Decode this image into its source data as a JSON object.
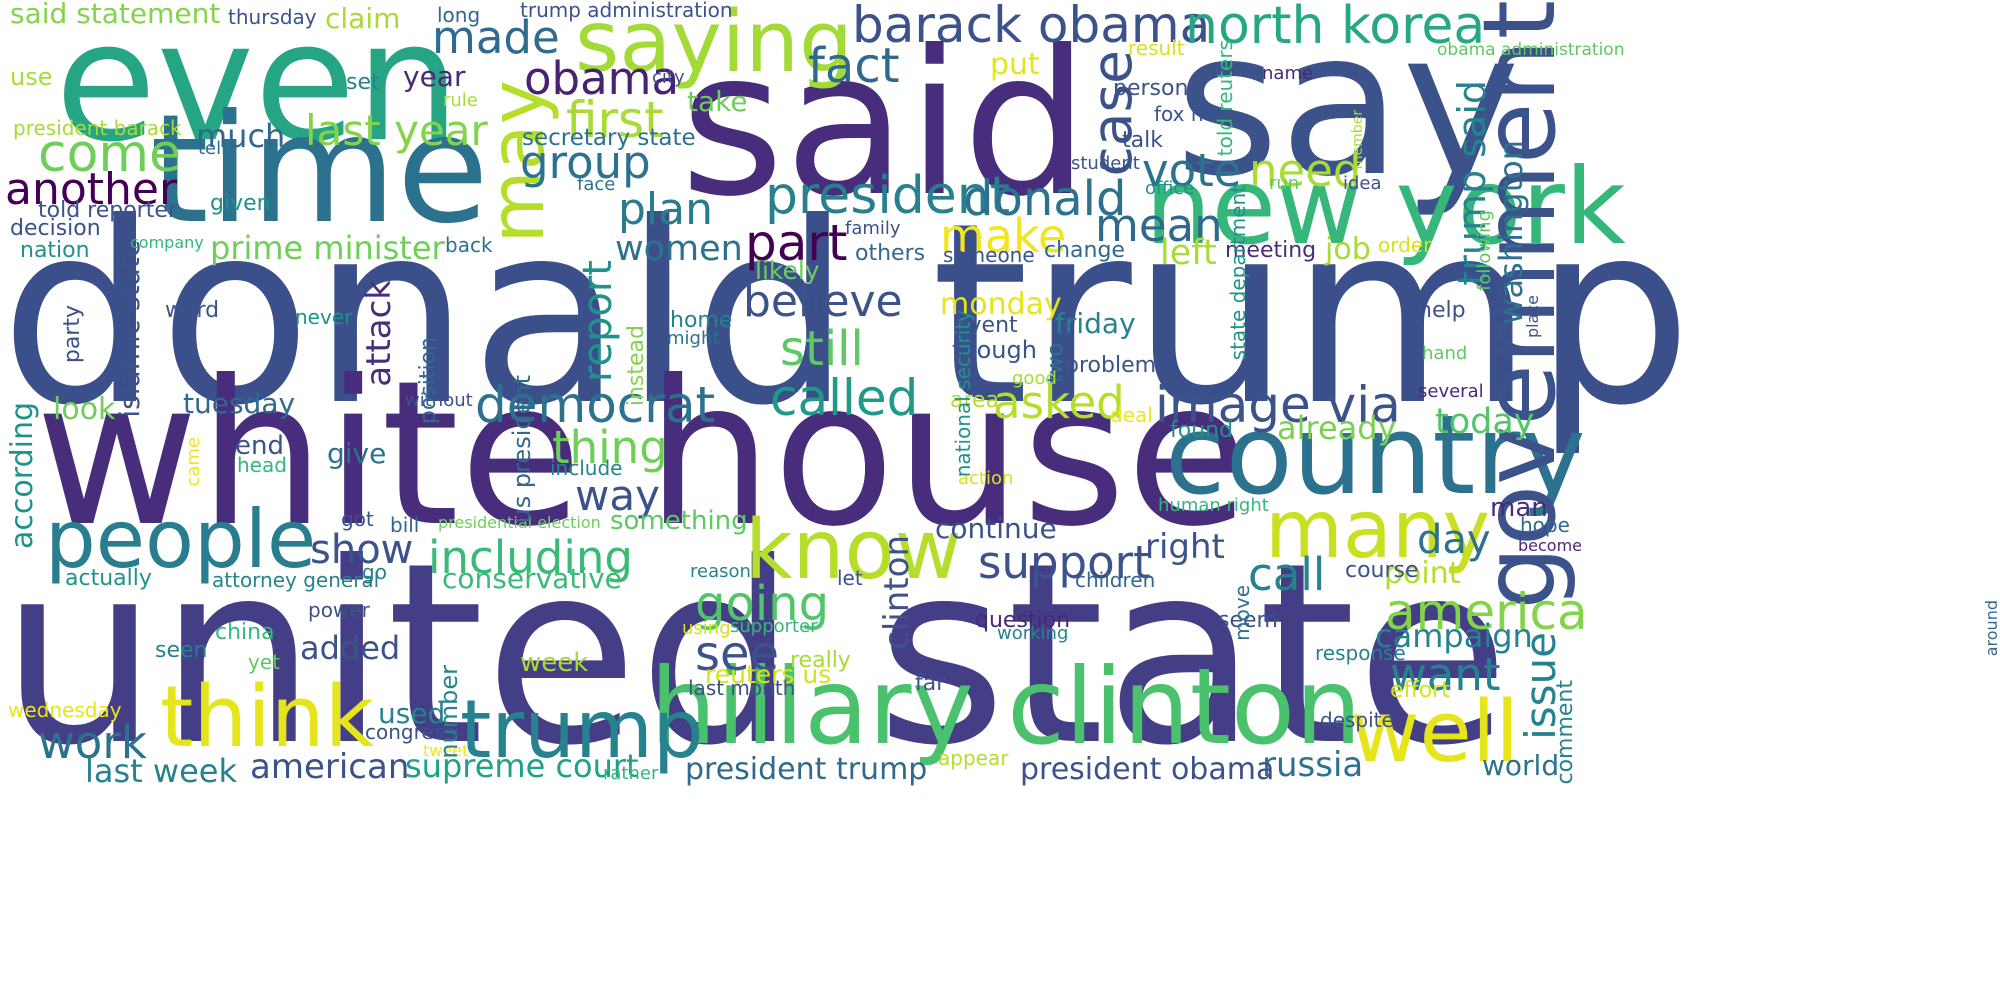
{
  "palette": {
    "navy": "#3b4f8b",
    "indigo": "#472d7b",
    "purple": "#482878",
    "blue": "#31688e",
    "teal": "#26828e",
    "sea": "#1f9e89",
    "green": "#35b779",
    "lime": "#6ece58",
    "yellowgreen": "#b5de2b",
    "yellow": "#e6e41a"
  },
  "words": [
    {
      "text": "donald trump",
      "color": "#3b4f8b"
    },
    {
      "text": "united state",
      "color": "#433e85"
    },
    {
      "text": "white house",
      "color": "#472d7b"
    },
    {
      "text": "said",
      "color": "#472d7b"
    },
    {
      "text": "say",
      "color": "#3b528b"
    },
    {
      "text": "even",
      "color": "#25a584"
    },
    {
      "text": "time",
      "color": "#2c728e"
    },
    {
      "text": "country",
      "color": "#2c728e"
    },
    {
      "text": "new york",
      "color": "#35b779"
    },
    {
      "text": "government",
      "color": "#3b528b"
    },
    {
      "text": "hillary clinton",
      "color": "#4ac16d"
    },
    {
      "text": "people",
      "color": "#287d8e"
    },
    {
      "text": "know",
      "color": "#b5de2b"
    },
    {
      "text": "many",
      "color": "#c8e020"
    },
    {
      "text": "think",
      "color": "#e6e41a"
    },
    {
      "text": "well",
      "color": "#e6e41a"
    },
    {
      "text": "trump",
      "color": "#26828e"
    },
    {
      "text": "saying",
      "color": "#a2da37"
    },
    {
      "text": "barack obama",
      "color": "#3b528b"
    },
    {
      "text": "north korea",
      "color": "#26a784"
    },
    {
      "text": "made",
      "color": "#2f6b8e"
    },
    {
      "text": "may",
      "color": "#b5de2b"
    },
    {
      "text": "obama",
      "color": "#482173"
    },
    {
      "text": "fact",
      "color": "#31688e"
    },
    {
      "text": "case",
      "color": "#3b528b"
    },
    {
      "text": "first",
      "color": "#a8db34"
    },
    {
      "text": "come",
      "color": "#6ece58"
    },
    {
      "text": "last year",
      "color": "#84d44b"
    },
    {
      "text": "much",
      "color": "#31688e"
    },
    {
      "text": "group",
      "color": "#2c728e"
    },
    {
      "text": "president",
      "color": "#27808e"
    },
    {
      "text": "donald",
      "color": "#2c728e"
    },
    {
      "text": "another",
      "color": "#440154"
    },
    {
      "text": "plan",
      "color": "#287c8e"
    },
    {
      "text": "vote",
      "color": "#2c728e"
    },
    {
      "text": "need",
      "color": "#a8db34"
    },
    {
      "text": "trump said",
      "color": "#26828e"
    },
    {
      "text": "part",
      "color": "#440154"
    },
    {
      "text": "make",
      "color": "#f1e51d"
    },
    {
      "text": "mean",
      "color": "#31688e"
    },
    {
      "text": "believe",
      "color": "#3b528b"
    },
    {
      "text": "still",
      "color": "#5ec962"
    },
    {
      "text": "called",
      "color": "#1f9a8a"
    },
    {
      "text": "democrat",
      "color": "#2c728e"
    },
    {
      "text": "report",
      "color": "#20928c"
    },
    {
      "text": "attack",
      "color": "#472d7b"
    },
    {
      "text": "image via",
      "color": "#3b528b"
    },
    {
      "text": "asked",
      "color": "#b5de2b"
    },
    {
      "text": "women",
      "color": "#2c728e"
    },
    {
      "text": "prime minister",
      "color": "#6ece58"
    },
    {
      "text": "islamic state",
      "color": "#3b528b"
    },
    {
      "text": "tuesday",
      "color": "#31688e"
    },
    {
      "text": "look",
      "color": "#6ece58"
    },
    {
      "text": "thing",
      "color": "#6ece58"
    },
    {
      "text": "way",
      "color": "#3b528b"
    },
    {
      "text": "left",
      "color": "#a8db34"
    },
    {
      "text": "washington",
      "color": "#2c728e"
    },
    {
      "text": "already",
      "color": "#7ad151"
    },
    {
      "text": "today",
      "color": "#52c569"
    },
    {
      "text": "issue",
      "color": "#26828e"
    },
    {
      "text": "america",
      "color": "#84d44b"
    },
    {
      "text": "campaign",
      "color": "#26828e"
    },
    {
      "text": "want",
      "color": "#26828e"
    },
    {
      "text": "day",
      "color": "#2c728e"
    },
    {
      "text": "call",
      "color": "#26828e"
    },
    {
      "text": "support",
      "color": "#3b528b"
    },
    {
      "text": "right",
      "color": "#3b528b"
    },
    {
      "text": "including",
      "color": "#3aba76"
    },
    {
      "text": "show",
      "color": "#3b528b"
    },
    {
      "text": "going",
      "color": "#52c569"
    },
    {
      "text": "see",
      "color": "#3b528b"
    },
    {
      "text": "clinton",
      "color": "#3b528b"
    },
    {
      "text": "work",
      "color": "#2c728e"
    },
    {
      "text": "last week",
      "color": "#26828e"
    },
    {
      "text": "american",
      "color": "#3b528b"
    },
    {
      "text": "supreme court",
      "color": "#1fa088"
    },
    {
      "text": "added",
      "color": "#3b528b"
    },
    {
      "text": "conservative",
      "color": "#3aba76"
    },
    {
      "text": "continue",
      "color": "#3b528b"
    },
    {
      "text": "point",
      "color": "#b5de2b"
    },
    {
      "text": "russia",
      "color": "#2c728e"
    },
    {
      "text": "president trump",
      "color": "#31688e"
    },
    {
      "text": "president obama",
      "color": "#3b528b"
    },
    {
      "text": "world",
      "color": "#2c728e"
    },
    {
      "text": "said statement",
      "color": "#84d44b"
    },
    {
      "text": "claim",
      "color": "#a8db34"
    },
    {
      "text": "use",
      "color": "#a8db34"
    },
    {
      "text": "thursday",
      "color": "#3b528b"
    },
    {
      "text": "long",
      "color": "#31688e"
    },
    {
      "text": "trump administration",
      "color": "#3b528b"
    },
    {
      "text": "obama administration",
      "color": "#5ec962"
    },
    {
      "text": "result",
      "color": "#d8e219"
    },
    {
      "text": "year",
      "color": "#482878"
    },
    {
      "text": "take",
      "color": "#6ece58"
    },
    {
      "text": "put",
      "color": "#e6e41a"
    },
    {
      "text": "set",
      "color": "#26828e"
    },
    {
      "text": "city",
      "color": "#3b528b"
    },
    {
      "text": "rule",
      "color": "#a8db34"
    },
    {
      "text": "person",
      "color": "#3b528b"
    },
    {
      "text": "fox new",
      "color": "#3b528b"
    },
    {
      "text": "name",
      "color": "#482878"
    },
    {
      "text": "president barack",
      "color": "#a8db34"
    },
    {
      "text": "secretary state",
      "color": "#2c728e"
    },
    {
      "text": "tell",
      "color": "#31688e"
    },
    {
      "text": "talk",
      "color": "#3b528b"
    },
    {
      "text": "student",
      "color": "#3b528b"
    },
    {
      "text": "told reporter",
      "color": "#3b528b"
    },
    {
      "text": "face",
      "color": "#2c728e"
    },
    {
      "text": "run",
      "color": "#5ec962"
    },
    {
      "text": "idea",
      "color": "#3b528b"
    },
    {
      "text": "office",
      "color": "#20928c"
    },
    {
      "text": "given",
      "color": "#20928c"
    },
    {
      "text": "decision",
      "color": "#3b528b"
    },
    {
      "text": "nation",
      "color": "#20928c"
    },
    {
      "text": "company",
      "color": "#35b779"
    },
    {
      "text": "back",
      "color": "#2c728e"
    },
    {
      "text": "family",
      "color": "#3b528b"
    },
    {
      "text": "others",
      "color": "#31688e"
    },
    {
      "text": "someone",
      "color": "#3b528b"
    },
    {
      "text": "change",
      "color": "#31688e"
    },
    {
      "text": "meeting",
      "color": "#472d7b"
    },
    {
      "text": "job",
      "color": "#a8db34"
    },
    {
      "text": "order",
      "color": "#d8e219"
    },
    {
      "text": "likely",
      "color": "#6ece58"
    },
    {
      "text": "monday",
      "color": "#e6e41a"
    },
    {
      "text": "event",
      "color": "#3b528b"
    },
    {
      "text": "though",
      "color": "#3b528b"
    },
    {
      "text": "friday",
      "color": "#26828e"
    },
    {
      "text": "help",
      "color": "#3b528b"
    },
    {
      "text": "hand",
      "color": "#5ec962"
    },
    {
      "text": "two",
      "color": "#2c728e"
    },
    {
      "text": "problem",
      "color": "#3b528b"
    },
    {
      "text": "good",
      "color": "#a8db34"
    },
    {
      "text": "several",
      "color": "#482878"
    },
    {
      "text": "area",
      "color": "#b5de2b"
    },
    {
      "text": "deal",
      "color": "#f1e51d"
    },
    {
      "text": "found",
      "color": "#20928c"
    },
    {
      "text": "word",
      "color": "#3b528b"
    },
    {
      "text": "party",
      "color": "#3b528b"
    },
    {
      "text": "never",
      "color": "#20928c"
    },
    {
      "text": "home",
      "color": "#26828e"
    },
    {
      "text": "might",
      "color": "#2c728e"
    },
    {
      "text": "without",
      "color": "#3b528b"
    },
    {
      "text": "according",
      "color": "#20928c"
    },
    {
      "text": "end",
      "color": "#3b528b"
    },
    {
      "text": "head",
      "color": "#35b779"
    },
    {
      "text": "came",
      "color": "#f1e51d"
    },
    {
      "text": "give",
      "color": "#2c728e"
    },
    {
      "text": "include",
      "color": "#26828e"
    },
    {
      "text": "action",
      "color": "#d8e219"
    },
    {
      "text": "bill",
      "color": "#31688e"
    },
    {
      "text": "presidential election",
      "color": "#6ece58"
    },
    {
      "text": "something",
      "color": "#5ec962"
    },
    {
      "text": "got",
      "color": "#3b528b"
    },
    {
      "text": "let",
      "color": "#3b528b"
    },
    {
      "text": "human right",
      "color": "#35b779"
    },
    {
      "text": "man",
      "color": "#472d7b"
    },
    {
      "text": "hope",
      "color": "#31688e"
    },
    {
      "text": "become",
      "color": "#482878"
    },
    {
      "text": "actually",
      "color": "#20928c"
    },
    {
      "text": "attorney general",
      "color": "#26828e"
    },
    {
      "text": "go",
      "color": "#26828e"
    },
    {
      "text": "reason",
      "color": "#26828e"
    },
    {
      "text": "children",
      "color": "#31688e"
    },
    {
      "text": "course",
      "color": "#3b528b"
    },
    {
      "text": "power",
      "color": "#3b528b"
    },
    {
      "text": "china",
      "color": "#35b779"
    },
    {
      "text": "seen",
      "color": "#26828e"
    },
    {
      "text": "yet",
      "color": "#5ec962"
    },
    {
      "text": "using",
      "color": "#d8e219"
    },
    {
      "text": "supporter",
      "color": "#35b779"
    },
    {
      "text": "question",
      "color": "#482878"
    },
    {
      "text": "working",
      "color": "#26828e"
    },
    {
      "text": "seem",
      "color": "#3b528b"
    },
    {
      "text": "week",
      "color": "#a8db34"
    },
    {
      "text": "really",
      "color": "#a8db34"
    },
    {
      "text": "reuters us",
      "color": "#d8e219"
    },
    {
      "text": "last month",
      "color": "#3b528b"
    },
    {
      "text": "far",
      "color": "#3b528b"
    },
    {
      "text": "response",
      "color": "#26828e"
    },
    {
      "text": "effort",
      "color": "#d8e219"
    },
    {
      "text": "wednesday",
      "color": "#e6e41a"
    },
    {
      "text": "used",
      "color": "#26828e"
    },
    {
      "text": "congress",
      "color": "#3b528b"
    },
    {
      "text": "tweet",
      "color": "#f1e51d"
    },
    {
      "text": "appear",
      "color": "#b5de2b"
    },
    {
      "text": "despite",
      "color": "#3b528b"
    },
    {
      "text": "rather",
      "color": "#35b779"
    },
    {
      "text": "us president",
      "color": "#31688e"
    },
    {
      "text": "told reuters",
      "color": "#35b779"
    },
    {
      "text": "state department",
      "color": "#20928c"
    },
    {
      "text": "member",
      "color": "#a8db34"
    },
    {
      "text": "national security",
      "color": "#20928c"
    },
    {
      "text": "instead",
      "color": "#84d44b"
    },
    {
      "text": "position",
      "color": "#31688e"
    },
    {
      "text": "number",
      "color": "#26828e"
    },
    {
      "text": "move",
      "color": "#2c728e"
    },
    {
      "text": "following",
      "color": "#5ec962"
    },
    {
      "text": "place",
      "color": "#3b528b"
    },
    {
      "text": "comment",
      "color": "#26828e"
    },
    {
      "text": "around",
      "color": "#31688e"
    }
  ]
}
